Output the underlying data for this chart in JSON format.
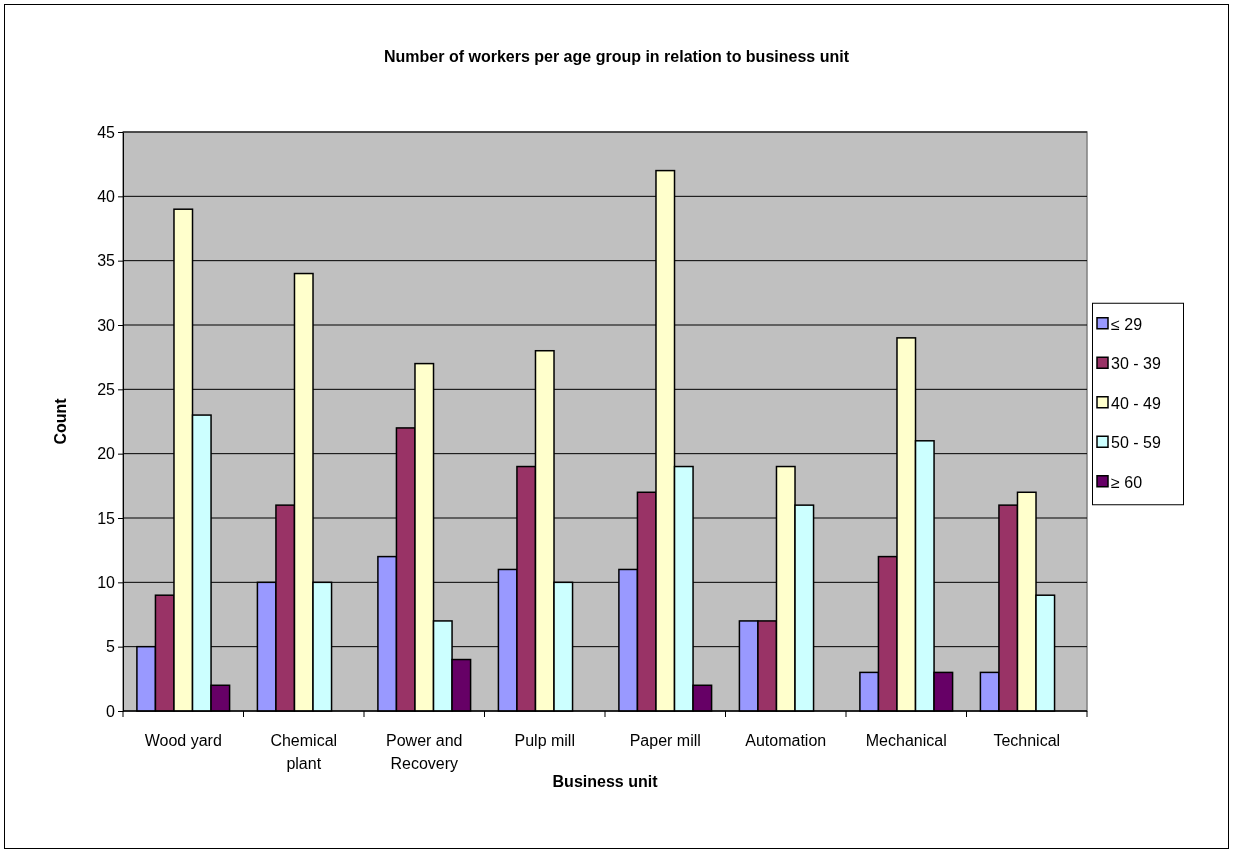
{
  "chart_data": {
    "type": "bar",
    "title": "Number of workers per age group in relation to business unit",
    "xlabel": "Business unit",
    "ylabel": "Count",
    "categories": [
      "Wood yard",
      "Chemical plant",
      "Power and Recovery",
      "Pulp mill",
      "Paper mill",
      "Automation",
      "Mechanical",
      "Technical"
    ],
    "series": [
      {
        "name": "≤ 29",
        "color": "#9999ff",
        "values": [
          5,
          10,
          12,
          11,
          11,
          7,
          3,
          3
        ]
      },
      {
        "name": "30 - 39",
        "color": "#993366",
        "values": [
          9,
          16,
          22,
          19,
          17,
          7,
          12,
          16
        ]
      },
      {
        "name": "40 - 49",
        "color": "#ffffcc",
        "values": [
          39,
          34,
          27,
          28,
          42,
          19,
          29,
          17
        ]
      },
      {
        "name": "50 - 59",
        "color": "#ccffff",
        "values": [
          23,
          10,
          7,
          10,
          19,
          16,
          21,
          9
        ]
      },
      {
        "name": "≥ 60",
        "color": "#660066",
        "values": [
          2,
          null,
          4,
          null,
          2,
          null,
          3,
          null
        ]
      }
    ],
    "ylim": [
      0,
      45
    ],
    "yticks": [
      0,
      5,
      10,
      15,
      20,
      25,
      30,
      35,
      40,
      45
    ],
    "grid": "y",
    "legend": "right"
  }
}
